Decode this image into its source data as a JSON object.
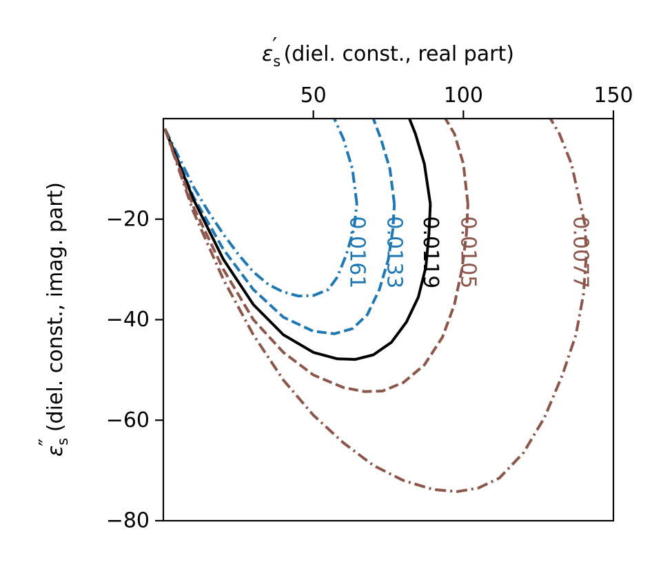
{
  "chart_data": {
    "type": "line",
    "title": "",
    "xlabel": {
      "symbol": "ε",
      "sub": "s",
      "mark": "′",
      "text": " (diel. const., real part)"
    },
    "ylabel": {
      "symbol": "ε",
      "sub": "s",
      "mark": "″",
      "text": " (diel. const., imag. part)"
    },
    "xaxis_position": "top",
    "xlim": [
      0,
      150
    ],
    "ylim": [
      -80,
      0
    ],
    "xticks": [
      50,
      100,
      150
    ],
    "yticks": [
      -20,
      -40,
      -60,
      -80
    ],
    "xtick_labels": [
      "50",
      "100",
      "150"
    ],
    "ytick_labels": [
      "−20",
      "−40",
      "−60",
      "−80"
    ],
    "grid": false,
    "legend": "none",
    "series": [
      {
        "label": "0.0161",
        "color": "#1f77b4",
        "linestyle": "dashdot",
        "points": [
          [
            0.5,
            -2
          ],
          [
            5,
            -7.5
          ],
          [
            10,
            -13.5
          ],
          [
            15,
            -18.5
          ],
          [
            20,
            -23
          ],
          [
            25,
            -27
          ],
          [
            30,
            -30.5
          ],
          [
            35,
            -33
          ],
          [
            40,
            -34.5
          ],
          [
            45,
            -35.3
          ],
          [
            50,
            -35.2
          ],
          [
            55,
            -34
          ],
          [
            58,
            -31.5
          ],
          [
            61,
            -27
          ],
          [
            63.5,
            -22
          ],
          [
            64.5,
            -17
          ]
        ],
        "tail": [
          [
            64.5,
            -17
          ],
          [
            63,
            -10
          ],
          [
            60,
            -4
          ],
          [
            57,
            0
          ]
        ],
        "label_pos": [
          64.5,
          -17
        ]
      },
      {
        "label": "0.0133",
        "color": "#1f77b4",
        "linestyle": "dashed",
        "points": [
          [
            0.5,
            -2
          ],
          [
            10,
            -15.5
          ],
          [
            20,
            -26
          ],
          [
            30,
            -34
          ],
          [
            40,
            -39.5
          ],
          [
            50,
            -42.3
          ],
          [
            57,
            -42.8
          ],
          [
            63,
            -41.8
          ],
          [
            68,
            -39
          ],
          [
            72,
            -34
          ],
          [
            75,
            -28
          ],
          [
            76.5,
            -22
          ],
          [
            77,
            -17
          ]
        ],
        "tail": [
          [
            77,
            -17
          ],
          [
            75.5,
            -10
          ],
          [
            72.5,
            -4
          ],
          [
            70,
            0
          ]
        ],
        "label_pos": [
          77,
          -17
        ]
      },
      {
        "label": "0.0119",
        "color": "#000000",
        "linestyle": "solid",
        "points": [
          [
            0.5,
            -2
          ],
          [
            10,
            -16
          ],
          [
            20,
            -28
          ],
          [
            30,
            -37
          ],
          [
            40,
            -43
          ],
          [
            50,
            -46.5
          ],
          [
            58,
            -47.8
          ],
          [
            64,
            -47.9
          ],
          [
            70,
            -47
          ],
          [
            76,
            -44.5
          ],
          [
            81,
            -40.5
          ],
          [
            85,
            -35.5
          ],
          [
            87.5,
            -29.5
          ],
          [
            88.5,
            -23
          ],
          [
            89,
            -17
          ]
        ],
        "tail": [
          [
            89,
            -17
          ],
          [
            87,
            -9
          ],
          [
            84,
            -3
          ],
          [
            82,
            0
          ]
        ],
        "label_pos": [
          89,
          -17
        ]
      },
      {
        "label": "0.0105",
        "color": "#8c564b",
        "linestyle": "dashed",
        "points": [
          [
            0.5,
            -2
          ],
          [
            10,
            -17.5
          ],
          [
            20,
            -30
          ],
          [
            30,
            -40
          ],
          [
            40,
            -46.5
          ],
          [
            50,
            -51
          ],
          [
            60,
            -53.5
          ],
          [
            67,
            -54.3
          ],
          [
            73,
            -54.2
          ],
          [
            80,
            -52.5
          ],
          [
            87,
            -49
          ],
          [
            93,
            -43.5
          ],
          [
            97,
            -37
          ],
          [
            99.5,
            -30
          ],
          [
            101,
            -23
          ],
          [
            101.5,
            -17
          ]
        ],
        "tail": [
          [
            101.5,
            -17
          ],
          [
            100,
            -9
          ],
          [
            97,
            -3
          ],
          [
            94,
            0
          ]
        ],
        "label_pos": [
          101.5,
          -17
        ]
      },
      {
        "label": "0.0077",
        "color": "#8c564b",
        "linestyle": "dashdot",
        "points": [
          [
            0.5,
            -2
          ],
          [
            10,
            -18.5
          ],
          [
            20,
            -32
          ],
          [
            30,
            -43
          ],
          [
            40,
            -52
          ],
          [
            50,
            -59
          ],
          [
            60,
            -64.5
          ],
          [
            70,
            -69
          ],
          [
            80,
            -72
          ],
          [
            90,
            -73.8
          ],
          [
            98,
            -74.2
          ],
          [
            105,
            -73.5
          ],
          [
            112,
            -71.5
          ],
          [
            120,
            -66.5
          ],
          [
            127,
            -59.5
          ],
          [
            133,
            -51
          ],
          [
            137.5,
            -43
          ],
          [
            140,
            -35
          ],
          [
            141,
            -27
          ],
          [
            140.5,
            -21
          ],
          [
            139,
            -17
          ]
        ],
        "tail": [
          [
            139,
            -17
          ],
          [
            136,
            -9
          ],
          [
            132,
            -3
          ],
          [
            129,
            0
          ]
        ],
        "label_pos": [
          139,
          -17
        ]
      }
    ]
  }
}
